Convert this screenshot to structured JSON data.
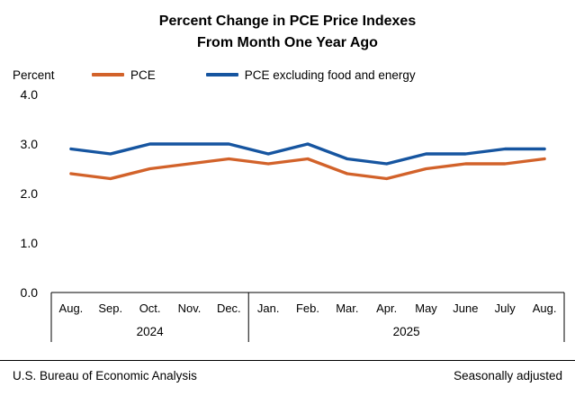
{
  "title": {
    "line1": "Percent Change in PCE Price Indexes",
    "line2": "From Month One Year Ago"
  },
  "y_axis_label": "Percent",
  "legend": [
    {
      "label": "PCE",
      "color": "#d2622a"
    },
    {
      "label": "PCE excluding food and energy",
      "color": "#1655a0"
    }
  ],
  "footer": {
    "left": "U.S. Bureau of Economic Analysis",
    "right": "Seasonally adjusted"
  },
  "chart_data": {
    "type": "line",
    "title": "Percent Change in PCE Price Indexes From Month One Year Ago",
    "ylabel": "Percent",
    "categories": [
      "Aug.",
      "Sep.",
      "Oct.",
      "Nov.",
      "Dec.",
      "Jan.",
      "Feb.",
      "Mar.",
      "Apr.",
      "May",
      "June",
      "July",
      "Aug."
    ],
    "year_groups": [
      {
        "label": "2024",
        "start": 0,
        "end": 4
      },
      {
        "label": "2025",
        "start": 5,
        "end": 12
      }
    ],
    "series": [
      {
        "name": "PCE",
        "color": "#d2622a",
        "values": [
          2.4,
          2.3,
          2.5,
          2.6,
          2.7,
          2.6,
          2.7,
          2.4,
          2.3,
          2.5,
          2.6,
          2.6,
          2.7
        ]
      },
      {
        "name": "PCE excluding food and energy",
        "color": "#1655a0",
        "values": [
          2.9,
          2.8,
          3.0,
          3.0,
          3.0,
          2.8,
          3.0,
          2.7,
          2.6,
          2.8,
          2.8,
          2.9,
          2.9
        ]
      }
    ],
    "ylim": [
      0,
      4
    ],
    "yticks": [
      0.0,
      1.0,
      2.0,
      3.0,
      4.0
    ],
    "grid": false,
    "legend_position": "top",
    "annotation": "Seasonally adjusted"
  }
}
